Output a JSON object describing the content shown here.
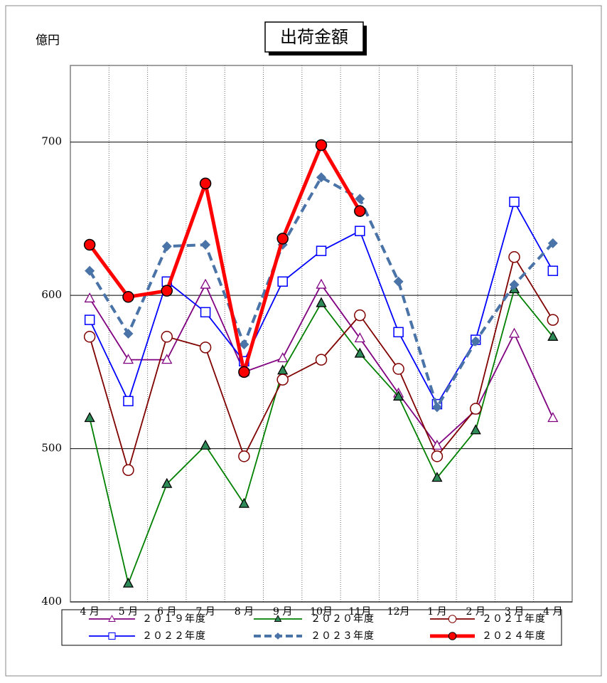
{
  "chart_data": {
    "type": "line",
    "title": "出荷金額",
    "y_label": "億円",
    "categories": [
      "4 月",
      "5 月",
      "6 月",
      "7 月",
      "8 月",
      "9 月",
      "10月",
      "11月",
      "12月",
      "1 月",
      "2 月",
      "3 月",
      "4 月"
    ],
    "ylim": [
      400,
      750
    ],
    "yticks": [
      400,
      500,
      600,
      700
    ],
    "grid": true,
    "series": [
      {
        "name": "２０１９年度",
        "color": "#800080",
        "marker": "triangle-open",
        "values": [
          598,
          558,
          558,
          607,
          550,
          559,
          607,
          572,
          536,
          502,
          525,
          575,
          520
        ]
      },
      {
        "name": "２０２０年度",
        "color": "#008000",
        "marker": "triangle-filled",
        "values": [
          520,
          412,
          477,
          502,
          464,
          551,
          595,
          562,
          534,
          481,
          512,
          604,
          573
        ]
      },
      {
        "name": "２０２１年度",
        "color": "#800000",
        "marker": "circle-open",
        "values": [
          573,
          486,
          573,
          566,
          495,
          545,
          558,
          587,
          552,
          495,
          526,
          625,
          584
        ]
      },
      {
        "name": "２０２２年度",
        "color": "#0000ff",
        "marker": "square-open",
        "values": [
          584,
          531,
          609,
          589,
          557,
          609,
          629,
          642,
          576,
          529,
          571,
          661,
          616
        ]
      },
      {
        "name": "２０２３年度",
        "color": "#4a73a8",
        "marker": "diamond",
        "dashed": true,
        "values": [
          616,
          575,
          632,
          633,
          568,
          633,
          677,
          663,
          609,
          527,
          570,
          607,
          634
        ]
      },
      {
        "name": "２０２４年度",
        "color": "#ff0000",
        "marker": "circle-filled",
        "thick": true,
        "values": [
          633,
          599,
          603,
          673,
          550,
          637,
          698,
          655,
          null,
          null,
          null,
          null,
          null
        ]
      }
    ]
  }
}
